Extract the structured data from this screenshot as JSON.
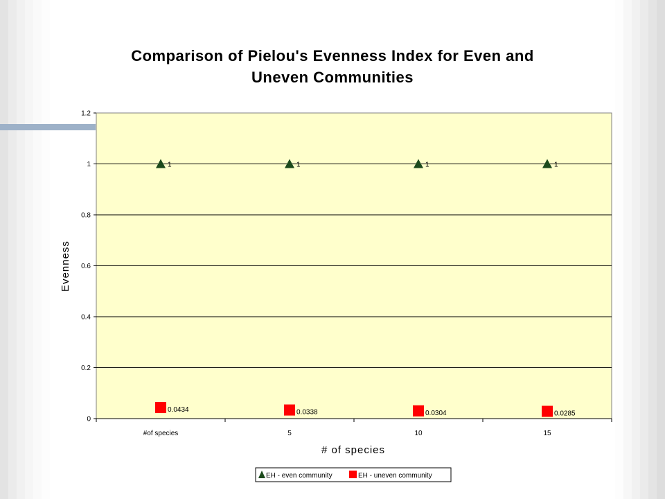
{
  "chart_data": {
    "type": "scatter",
    "title_line1": "Comparison of Pielou's Evenness Index for Even and",
    "title_line2": "Uneven Communities",
    "xlabel": "# of species",
    "ylabel": "Evenness",
    "categories": [
      "#of species",
      "5",
      "10",
      "15"
    ],
    "ylim": [
      0,
      1.2
    ],
    "y_ticks": [
      "0",
      "0.2",
      "0.4",
      "0.6",
      "0.8",
      "1",
      "1.2"
    ],
    "grid": true,
    "legend_position": "bottom",
    "plot_background": "#ffffcc",
    "series": [
      {
        "name": "EH - even community",
        "marker": "triangle",
        "color": "#1c4a1c",
        "values": [
          1,
          1,
          1,
          1
        ],
        "labels": [
          "1",
          "1",
          "1",
          "1"
        ]
      },
      {
        "name": "EH - uneven community",
        "marker": "square",
        "color": "#ff0000",
        "values": [
          0.0434,
          0.0338,
          0.0304,
          0.0285
        ],
        "labels": [
          "0.0434",
          "0.0338",
          "0.0304",
          "0.0285"
        ]
      }
    ]
  }
}
